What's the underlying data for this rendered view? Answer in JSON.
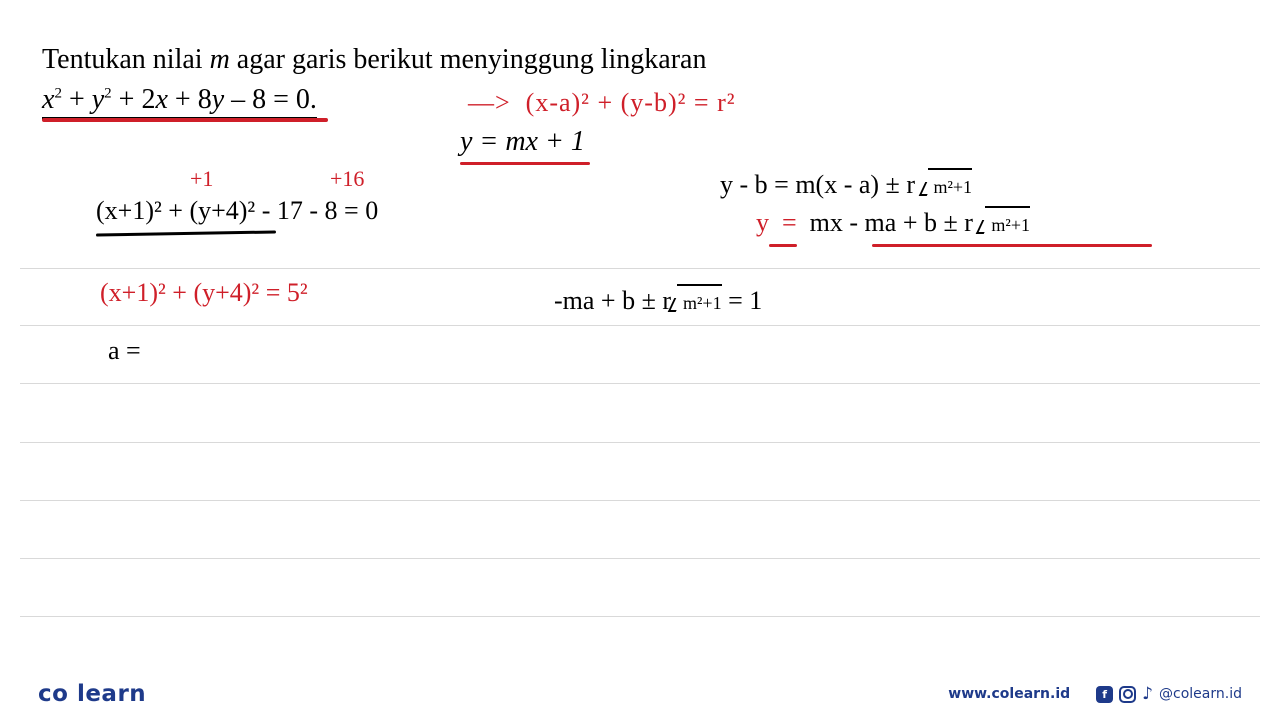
{
  "colors": {
    "red_ink": "#cf1f29",
    "black_ink": "#000000",
    "rule_line": "#d9d9d9",
    "brand_blue": "#1e3a8a",
    "brand_accent": "#f59e0b",
    "background": "#ffffff"
  },
  "problem": {
    "stem_pre": "Tentukan nilai ",
    "stem_var": "m",
    "stem_post": " agar garis berikut menyinggung lingkaran",
    "circle_eq_lhs": "x",
    "circle_eq": " + y² + 2x + 8y – 8 = 0.",
    "arrow": "—>",
    "std_form": "(x-a)² + (y-b)²  = r²",
    "line_eq": "y = mx + 1"
  },
  "annot": {
    "plus1": "+1",
    "plus16": "+16"
  },
  "work": {
    "completed_sq": "(x+1)²  + (y+4)²  - 17 - 8 = 0",
    "tangent_general": "y - b  =  m(x - a)  ±  r ",
    "tangent_radicand1": "m²+1",
    "tangent_expanded_y": "y",
    "tangent_expanded_eq": "=",
    "tangent_expanded_rhs": "mx  - ma + b  ±  r ",
    "tangent_radicand2": "m²+1",
    "radius_form": "(x+1)²  + (y+4)²   =  5²",
    "condition": "-ma + b  ±  r",
    "condition_rad": "m²+1",
    "condition_eq": "  =  1",
    "a_eq": "a ="
  },
  "footer": {
    "logo_pre": "co",
    "logo_dot": " ",
    "logo_post": "learn",
    "url": "www.colearn.id",
    "handle": "@colearn.id",
    "fb_label": "f"
  }
}
